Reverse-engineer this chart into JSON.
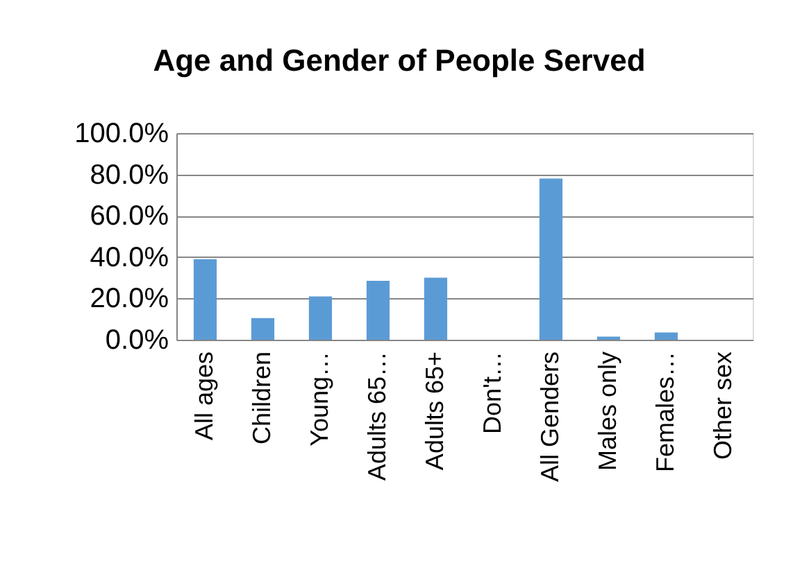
{
  "chart_data": {
    "type": "bar",
    "title": "Age and Gender of People Served",
    "categories": [
      "All ages",
      "Children",
      "Young…",
      "Adults 65…",
      "Adults 65+",
      "Don't…",
      "All Genders",
      "Males only",
      "Females…",
      "Other sex"
    ],
    "values": [
      39,
      10.5,
      21,
      28.5,
      30,
      0,
      78,
      1.5,
      3.5,
      0
    ],
    "color": "#5b9bd5",
    "ylim": [
      0,
      100
    ],
    "yticks": [
      {
        "value": 0,
        "label": "0.0%"
      },
      {
        "value": 20,
        "label": "20.0%"
      },
      {
        "value": 40,
        "label": "40.0%"
      },
      {
        "value": 60,
        "label": "60.0%"
      },
      {
        "value": 80,
        "label": "80.0%"
      },
      {
        "value": 100,
        "label": "100.0%"
      }
    ],
    "grid": "y"
  }
}
